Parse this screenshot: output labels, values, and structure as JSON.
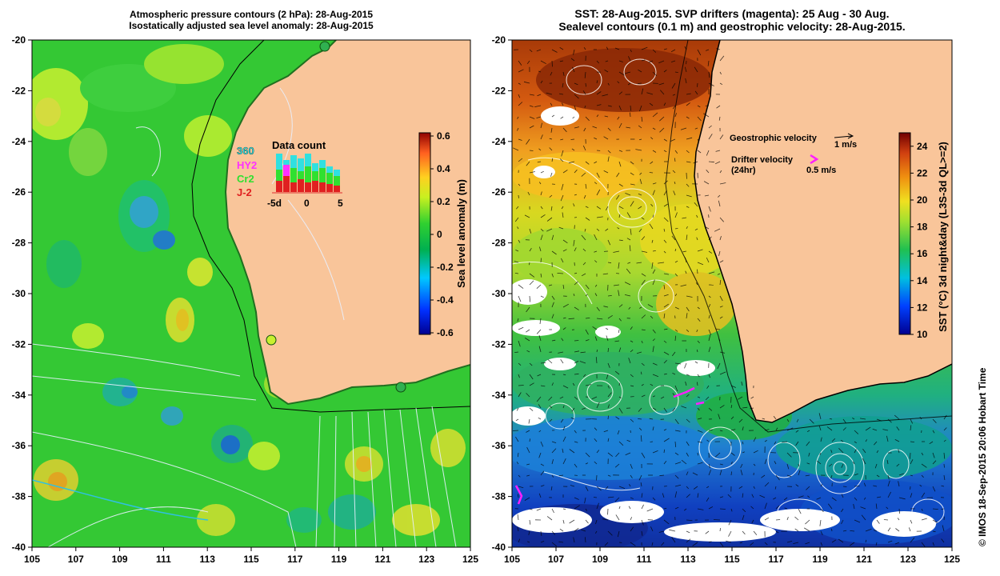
{
  "left_map": {
    "title_line1": "Atmospheric pressure contours (2 hPa): 28-Aug-2015",
    "title_line2": "Isostatically adjusted sea level anomaly: 28-Aug-2015",
    "colorbar": {
      "label": "Sea level anomaly (m)",
      "ticks": [
        "0.6",
        "0.4",
        "0.2",
        "0",
        "-0.2",
        "-0.4",
        "-0.6"
      ],
      "range": [
        -0.6,
        0.6
      ]
    },
    "inset": {
      "title": "Data count",
      "series": [
        {
          "name": "360",
          "color": "#30e0e0"
        },
        {
          "name": "HY2",
          "color": "#ff30ff"
        },
        {
          "name": "Cr2",
          "color": "#30e030"
        },
        {
          "name": "J-2",
          "color": "#e02020"
        }
      ],
      "x_ticks": [
        "-5d",
        "0",
        "5"
      ]
    }
  },
  "right_map": {
    "title_line1": "SST: 28-Aug-2015. SVP drifters (magenta): 25 Aug - 30 Aug.",
    "title_line2": "Sealevel contours (0.1 m) and geostrophic velocity: 28-Aug-2015.",
    "colorbar": {
      "label": "SST (°C) 3d night&day (L3S-3d QL>=2)",
      "ticks": [
        "24",
        "22",
        "20",
        "18",
        "16",
        "14",
        "12",
        "10"
      ],
      "range": [
        10,
        25
      ]
    },
    "geostrophic_label": "Geostrophic velocity",
    "geostrophic_scale": "1 m/s",
    "drifter_label": "Drifter velocity",
    "drifter_period": "(24hr)",
    "drifter_scale": "0.5 m/s"
  },
  "axes": {
    "lon_ticks": [
      "105",
      "107",
      "109",
      "111",
      "113",
      "115",
      "117",
      "119",
      "121",
      "123",
      "125"
    ],
    "lat_ticks": [
      "-20",
      "-22",
      "-24",
      "-26",
      "-28",
      "-30",
      "-32",
      "-34",
      "-36",
      "-38",
      "-40"
    ],
    "lon_range": [
      105,
      125
    ],
    "lat_range": [
      -40,
      -20
    ]
  },
  "credit": "© IMOS 18-Sep-2015 20:06 Hobart Time",
  "colors": {
    "land": "#f9c59a",
    "sla_green": "#28c828",
    "sst_orange": "#d05010"
  }
}
